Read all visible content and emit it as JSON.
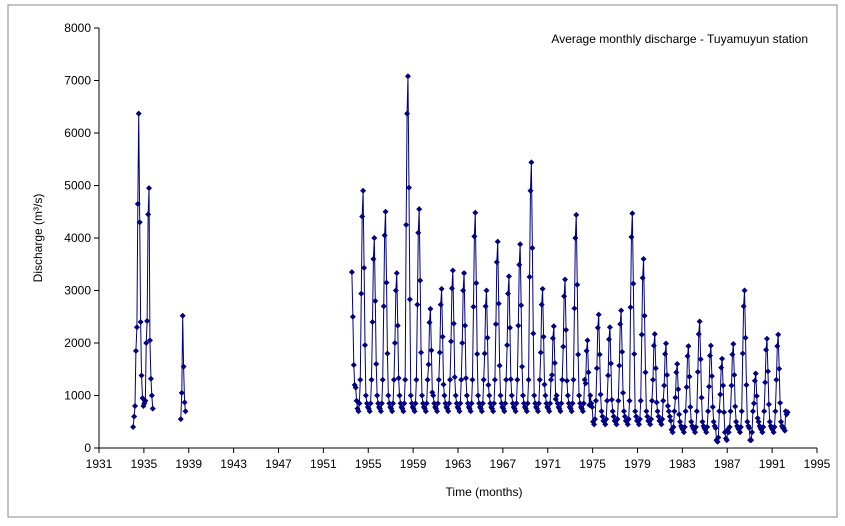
{
  "chart_data": {
    "type": "line",
    "annotation": "Average monthly discharge - Tuyamuyun station",
    "y_label": "Discharge (m³/s)",
    "x_label": "Time (months)",
    "xlim": [
      1931,
      1995
    ],
    "xticks": [
      1931,
      1935,
      1939,
      1943,
      1947,
      1951,
      1955,
      1959,
      1963,
      1967,
      1971,
      1975,
      1979,
      1983,
      1987,
      1991,
      1995
    ],
    "ylim": [
      0,
      8000
    ],
    "yticks": [
      0,
      1000,
      2000,
      3000,
      4000,
      5000,
      6000,
      7000,
      8000
    ],
    "series": [
      {
        "color": "#000080",
        "x": [
          1934.04,
          1934.13,
          1934.21,
          1934.29,
          1934.38,
          1934.46,
          1934.54,
          1934.63,
          1934.71,
          1934.79,
          1934.88,
          1934.96,
          1935.04,
          1935.13,
          1935.21,
          1935.29,
          1935.38,
          1935.46,
          1935.54,
          1935.63,
          1935.71,
          1935.79,
          1937,
          1938.29,
          1938.38,
          1938.46,
          1938.54,
          1938.63,
          1938.71,
          1946,
          1953.54,
          1953.63,
          1953.71,
          1953.79,
          1953.88,
          1953.96,
          1954.04,
          1954.13,
          1954.21,
          1954.29,
          1954.38,
          1954.46,
          1954.54,
          1954.63,
          1954.71,
          1954.79,
          1954.88,
          1954.96,
          1955.04,
          1955.13,
          1955.21,
          1955.29,
          1955.38,
          1955.46,
          1955.54,
          1955.63,
          1955.71,
          1955.79,
          1955.88,
          1955.96,
          1956.04,
          1956.13,
          1956.21,
          1956.29,
          1956.38,
          1956.46,
          1956.54,
          1956.63,
          1956.71,
          1956.79,
          1956.88,
          1956.96,
          1957.04,
          1957.13,
          1957.21,
          1957.29,
          1957.38,
          1957.46,
          1957.54,
          1957.63,
          1957.71,
          1957.79,
          1957.88,
          1957.96,
          1958.04,
          1958.13,
          1958.21,
          1958.29,
          1958.38,
          1958.46,
          1958.54,
          1958.63,
          1958.71,
          1958.79,
          1958.88,
          1958.96,
          1959.04,
          1959.13,
          1959.21,
          1959.29,
          1959.38,
          1959.46,
          1959.54,
          1959.63,
          1959.71,
          1959.79,
          1959.88,
          1959.96,
          1960.04,
          1960.13,
          1960.21,
          1960.29,
          1960.38,
          1960.46,
          1960.54,
          1960.63,
          1960.71,
          1960.79,
          1960.88,
          1960.96,
          1961.04,
          1961.13,
          1961.21,
          1961.29,
          1961.38,
          1961.46,
          1961.54,
          1961.63,
          1961.71,
          1961.79,
          1961.88,
          1961.96,
          1962.04,
          1962.13,
          1962.21,
          1962.29,
          1962.38,
          1962.46,
          1962.54,
          1962.63,
          1962.71,
          1962.79,
          1962.88,
          1962.96,
          1963.04,
          1963.13,
          1963.21,
          1963.29,
          1963.38,
          1963.46,
          1963.54,
          1963.63,
          1963.71,
          1963.79,
          1963.88,
          1963.96,
          1964.04,
          1964.13,
          1964.21,
          1964.29,
          1964.38,
          1964.46,
          1964.54,
          1964.63,
          1964.71,
          1964.79,
          1964.88,
          1964.96,
          1965.04,
          1965.13,
          1965.21,
          1965.29,
          1965.38,
          1965.46,
          1965.54,
          1965.63,
          1965.71,
          1965.79,
          1965.88,
          1965.96,
          1966.04,
          1966.13,
          1966.21,
          1966.29,
          1966.38,
          1966.46,
          1966.54,
          1966.63,
          1966.71,
          1966.79,
          1966.88,
          1966.96,
          1967.04,
          1967.13,
          1967.21,
          1967.29,
          1967.38,
          1967.46,
          1967.54,
          1967.63,
          1967.71,
          1967.79,
          1967.88,
          1967.96,
          1968.04,
          1968.13,
          1968.21,
          1968.29,
          1968.38,
          1968.46,
          1968.54,
          1968.63,
          1968.71,
          1968.79,
          1968.88,
          1968.96,
          1969.04,
          1969.13,
          1969.21,
          1969.29,
          1969.38,
          1969.46,
          1969.54,
          1969.63,
          1969.71,
          1969.79,
          1969.88,
          1969.96,
          1970.04,
          1970.13,
          1970.21,
          1970.29,
          1970.38,
          1970.46,
          1970.54,
          1970.63,
          1970.71,
          1970.79,
          1970.88,
          1970.96,
          1971.04,
          1971.13,
          1971.21,
          1971.29,
          1971.38,
          1971.46,
          1971.54,
          1971.63,
          1971.71,
          1971.79,
          1971.88,
          1971.96,
          1972.04,
          1972.13,
          1972.21,
          1972.29,
          1972.38,
          1972.46,
          1972.54,
          1972.63,
          1972.71,
          1972.79,
          1972.88,
          1972.96,
          1973.04,
          1973.13,
          1973.21,
          1973.29,
          1973.38,
          1973.46,
          1973.54,
          1973.63,
          1973.71,
          1973.79,
          1973.88,
          1973.96,
          1974.04,
          1974.13,
          1974.21,
          1974.29,
          1974.38,
          1974.46,
          1974.54,
          1974.63,
          1974.71,
          1974.79,
          1974.88,
          1974.96,
          1975.04,
          1975.13,
          1975.21,
          1975.29,
          1975.38,
          1975.46,
          1975.54,
          1975.63,
          1975.71,
          1975.79,
          1975.88,
          1975.96,
          1976.04,
          1976.13,
          1976.21,
          1976.29,
          1976.38,
          1976.46,
          1976.54,
          1976.63,
          1976.71,
          1976.79,
          1976.88,
          1976.96,
          1977.04,
          1977.13,
          1977.21,
          1977.29,
          1977.38,
          1977.46,
          1977.54,
          1977.63,
          1977.71,
          1977.79,
          1977.88,
          1977.96,
          1978.04,
          1978.13,
          1978.21,
          1978.29,
          1978.38,
          1978.46,
          1978.54,
          1978.63,
          1978.71,
          1978.79,
          1978.88,
          1978.96,
          1979.04,
          1979.13,
          1979.21,
          1979.29,
          1979.38,
          1979.46,
          1979.54,
          1979.63,
          1979.71,
          1979.79,
          1979.88,
          1979.96,
          1980.04,
          1980.13,
          1980.21,
          1980.29,
          1980.38,
          1980.46,
          1980.54,
          1980.63,
          1980.71,
          1980.79,
          1980.88,
          1980.96,
          1981.04,
          1981.13,
          1981.21,
          1981.29,
          1981.38,
          1981.46,
          1981.54,
          1981.63,
          1981.71,
          1981.79,
          1981.88,
          1981.96,
          1982.04,
          1982.13,
          1982.21,
          1982.29,
          1982.38,
          1982.46,
          1982.54,
          1982.63,
          1982.71,
          1982.79,
          1982.88,
          1982.96,
          1983.04,
          1983.13,
          1983.21,
          1983.29,
          1983.38,
          1983.46,
          1983.54,
          1983.63,
          1983.71,
          1983.79,
          1983.88,
          1983.96,
          1984.04,
          1984.13,
          1984.21,
          1984.29,
          1984.38,
          1984.46,
          1984.54,
          1984.63,
          1984.71,
          1984.79,
          1984.88,
          1984.96,
          1985.04,
          1985.13,
          1985.21,
          1985.29,
          1985.38,
          1985.46,
          1985.54,
          1985.63,
          1985.71,
          1985.79,
          1985.88,
          1985.96,
          1986.04,
          1986.13,
          1986.21,
          1986.29,
          1986.38,
          1986.46,
          1986.54,
          1986.63,
          1986.71,
          1986.79,
          1986.88,
          1986.96,
          1987.04,
          1987.13,
          1987.21,
          1987.29,
          1987.38,
          1987.46,
          1987.54,
          1987.63,
          1987.71,
          1987.79,
          1987.88,
          1987.96,
          1988.04,
          1988.13,
          1988.21,
          1988.29,
          1988.38,
          1988.46,
          1988.54,
          1988.63,
          1988.71,
          1988.79,
          1988.88,
          1988.96,
          1989.04,
          1989.13,
          1989.21,
          1989.29,
          1989.38,
          1989.46,
          1989.54,
          1989.63,
          1989.71,
          1989.79,
          1989.88,
          1989.96,
          1990.04,
          1990.13,
          1990.21,
          1990.29,
          1990.38,
          1990.46,
          1990.54,
          1990.63,
          1990.71,
          1990.79,
          1990.88,
          1990.96,
          1991.04,
          1991.13,
          1991.21,
          1991.29,
          1991.38,
          1991.46,
          1991.54,
          1991.63,
          1991.71,
          1991.79,
          1991.88,
          1991.96,
          1992.04,
          1992.13,
          1992.21,
          1992.29,
          1992.38
        ],
        "values": [
          400,
          600,
          800,
          1850,
          2300,
          4650,
          6370,
          4300,
          2400,
          1380,
          950,
          800,
          850,
          900,
          2000,
          2420,
          4450,
          4950,
          2050,
          1320,
          1000,
          750,
          null,
          550,
          1050,
          2520,
          1550,
          870,
          700,
          null,
          3350,
          2500,
          1580,
          1200,
          1150,
          900,
          750,
          700,
          850,
          1300,
          2940,
          4410,
          4900,
          3430,
          1960,
          1000,
          850,
          780,
          750,
          700,
          850,
          1300,
          2400,
          3600,
          4000,
          2800,
          1600,
          1000,
          850,
          780,
          750,
          700,
          850,
          1300,
          2700,
          4050,
          4500,
          3150,
          1800,
          1000,
          850,
          780,
          750,
          700,
          850,
          1300,
          2000,
          3000,
          3330,
          2330,
          1330,
          1000,
          850,
          780,
          750,
          700,
          850,
          1300,
          4250,
          6370,
          7080,
          4960,
          2830,
          1000,
          850,
          780,
          750,
          700,
          850,
          1300,
          2730,
          4100,
          4550,
          3190,
          1820,
          1000,
          850,
          780,
          750,
          700,
          850,
          1300,
          1590,
          2390,
          2650,
          1860,
          1060,
          1000,
          850,
          780,
          750,
          700,
          850,
          1300,
          1820,
          2730,
          3030,
          2120,
          1210,
          1000,
          850,
          780,
          750,
          700,
          850,
          1300,
          2030,
          3040,
          3380,
          2370,
          1350,
          1000,
          850,
          780,
          750,
          700,
          850,
          1300,
          2000,
          3000,
          3330,
          2330,
          1330,
          1000,
          850,
          780,
          750,
          700,
          850,
          1300,
          2690,
          4030,
          4480,
          3140,
          1790,
          1000,
          850,
          780,
          750,
          700,
          850,
          1300,
          1800,
          2700,
          3000,
          2100,
          1200,
          1000,
          850,
          780,
          750,
          700,
          850,
          1300,
          2360,
          3540,
          3930,
          2750,
          1570,
          1000,
          850,
          780,
          750,
          700,
          850,
          1300,
          1960,
          2940,
          3270,
          2290,
          1310,
          1000,
          850,
          780,
          750,
          700,
          850,
          1300,
          2330,
          3490,
          3880,
          2720,
          1550,
          1000,
          850,
          780,
          750,
          700,
          850,
          1300,
          3260,
          4900,
          5440,
          3810,
          2180,
          1000,
          850,
          780,
          750,
          700,
          850,
          1300,
          1820,
          2730,
          3030,
          2120,
          1210,
          1000,
          850,
          780,
          750,
          700,
          850,
          1300,
          1390,
          2090,
          2320,
          1620,
          930,
          1000,
          850,
          780,
          750,
          700,
          850,
          1300,
          1930,
          2890,
          3210,
          2250,
          1280,
          1000,
          850,
          780,
          750,
          700,
          850,
          1300,
          2660,
          4000,
          4440,
          3110,
          1780,
          1000,
          850,
          780,
          750,
          700,
          850,
          1300,
          1230,
          1850,
          2050,
          1440,
          820,
          1000,
          850,
          780,
          500,
          450,
          550,
          900,
          1520,
          2290,
          2540,
          1780,
          1020,
          700,
          600,
          520,
          500,
          450,
          550,
          900,
          1380,
          2070,
          2300,
          1610,
          920,
          700,
          600,
          520,
          500,
          450,
          550,
          900,
          1570,
          2360,
          2620,
          1830,
          1050,
          700,
          600,
          520,
          500,
          450,
          550,
          900,
          2680,
          4020,
          4470,
          3130,
          1790,
          700,
          600,
          520,
          500,
          450,
          550,
          900,
          2160,
          3240,
          3600,
          2520,
          1440,
          700,
          600,
          520,
          500,
          450,
          550,
          900,
          1300,
          1950,
          2170,
          1520,
          870,
          700,
          600,
          520,
          500,
          450,
          550,
          900,
          1190,
          1790,
          1990,
          1390,
          800,
          700,
          600,
          520,
          350,
          300,
          400,
          700,
          960,
          1440,
          1600,
          1120,
          640,
          500,
          420,
          380,
          350,
          300,
          400,
          700,
          1160,
          1750,
          1940,
          1360,
          780,
          500,
          420,
          380,
          350,
          300,
          400,
          700,
          1450,
          2170,
          2410,
          1690,
          960,
          500,
          420,
          380,
          350,
          300,
          400,
          700,
          1170,
          1760,
          1950,
          1370,
          780,
          500,
          420,
          380,
          150,
          120,
          200,
          700,
          1020,
          1530,
          1700,
          1190,
          680,
          300,
          180,
          150,
          350,
          300,
          400,
          700,
          1190,
          1780,
          1980,
          1390,
          790,
          500,
          420,
          380,
          350,
          300,
          400,
          700,
          1800,
          2700,
          3000,
          2100,
          1200,
          500,
          420,
          380,
          150,
          150,
          300,
          700,
          850,
          1280,
          1420,
          990,
          570,
          500,
          420,
          380,
          350,
          300,
          400,
          700,
          1250,
          1870,
          2080,
          1460,
          830,
          500,
          420,
          380,
          350,
          300,
          400,
          700,
          1300,
          1940,
          2160,
          1510,
          860,
          500,
          420,
          380,
          380,
          330,
          700,
          640,
          680
        ]
      }
    ]
  }
}
